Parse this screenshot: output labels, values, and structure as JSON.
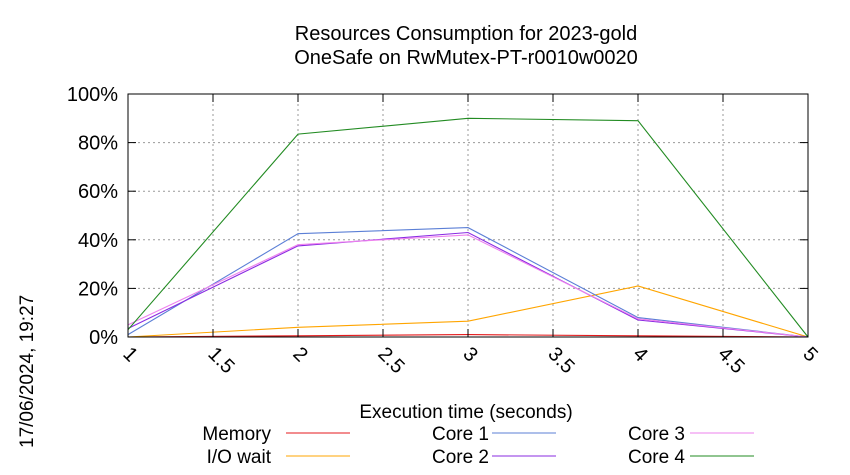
{
  "chart_data": {
    "type": "line",
    "title": "Resources Consumption for 2023-gold",
    "subtitle": "OneSafe on RwMutex-PT-r0010w0020",
    "xlabel": "Execution time (seconds)",
    "ylabel": "",
    "x": [
      1,
      2,
      3,
      4,
      5
    ],
    "xlim": [
      1,
      5
    ],
    "ylim": [
      0,
      100
    ],
    "x_ticks": [
      "1",
      "1.5",
      "2",
      "2.5",
      "3",
      "3.5",
      "4",
      "4.5",
      "5"
    ],
    "y_ticks": [
      "0%",
      "20%",
      "40%",
      "60%",
      "80%",
      "100%"
    ],
    "grid": true,
    "legend_position": "bottom",
    "series": [
      {
        "name": "Memory",
        "color": "#e41a1c",
        "values": [
          0,
          0.5,
          1,
          0.5,
          0
        ]
      },
      {
        "name": "I/O wait",
        "color": "#ffa500",
        "values": [
          0,
          4,
          6.5,
          21,
          0
        ]
      },
      {
        "name": "Core 1",
        "color": "#5b7fd6",
        "values": [
          1,
          42.5,
          45,
          8,
          0
        ]
      },
      {
        "name": "Core 2",
        "color": "#8a2be2",
        "values": [
          3.5,
          37.5,
          43,
          7,
          0
        ]
      },
      {
        "name": "Core 3",
        "color": "#ee82ee",
        "values": [
          5,
          38,
          42,
          7.5,
          0
        ]
      },
      {
        "name": "Core 4",
        "color": "#228b22",
        "values": [
          3,
          83.5,
          90,
          89,
          0
        ]
      }
    ]
  },
  "timestamp": "17/06/2024, 19:27"
}
